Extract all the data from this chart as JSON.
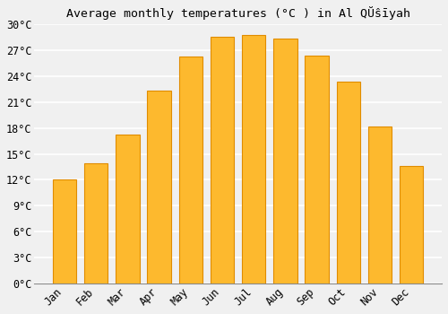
{
  "title": "Average monthly temperatures (°C ) in Al QŬŝīyah",
  "months": [
    "Jan",
    "Feb",
    "Mar",
    "Apr",
    "May",
    "Jun",
    "Jul",
    "Aug",
    "Sep",
    "Oct",
    "Nov",
    "Dec"
  ],
  "values": [
    12.1,
    13.9,
    17.2,
    22.3,
    26.3,
    28.6,
    28.8,
    28.4,
    26.4,
    23.4,
    18.2,
    13.6
  ],
  "bar_color": "#FDB92E",
  "bar_edge_color": "#E08C00",
  "background_color": "#F0F0F0",
  "grid_color": "#FFFFFF",
  "ylim": [
    0,
    30
  ],
  "ytick_step": 3,
  "title_fontsize": 9.5,
  "tick_fontsize": 8.5,
  "font_family": "monospace"
}
